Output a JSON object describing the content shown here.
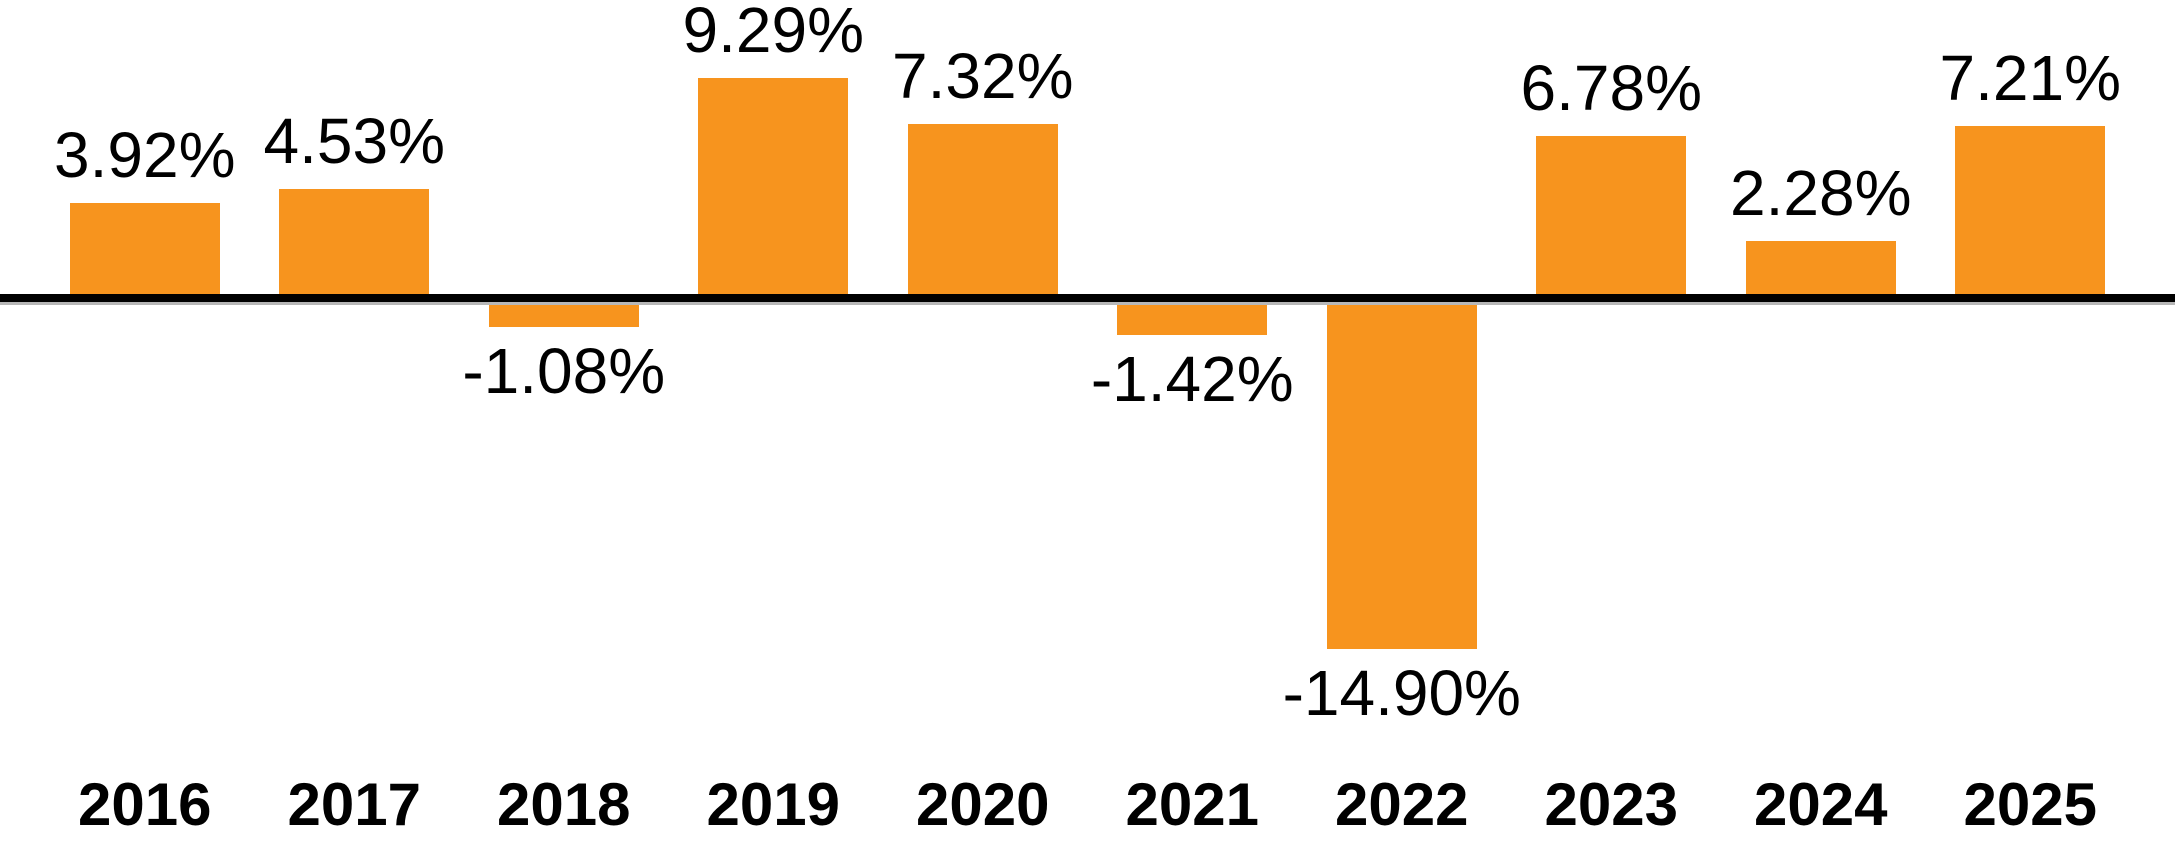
{
  "chart_data": {
    "type": "bar",
    "title": "",
    "xlabel": "",
    "ylabel": "",
    "categories": [
      "2016",
      "2017",
      "2018",
      "2019",
      "2020",
      "2021",
      "2022",
      "2023",
      "2024",
      "2025"
    ],
    "values": [
      3.92,
      4.53,
      -1.08,
      9.29,
      7.32,
      -1.42,
      -14.9,
      6.78,
      2.28,
      7.21
    ],
    "labels": [
      "3.92%",
      "4.53%",
      "-1.08%",
      "9.29%",
      "7.32%",
      "-1.42%",
      "-14.90%",
      "6.78%",
      "2.28%",
      "7.21%"
    ],
    "ylim": [
      -16,
      10
    ],
    "grid": false,
    "legend": false,
    "bar_color": "#F7941E",
    "axis_color": "#000000",
    "label_color": "#000000"
  }
}
